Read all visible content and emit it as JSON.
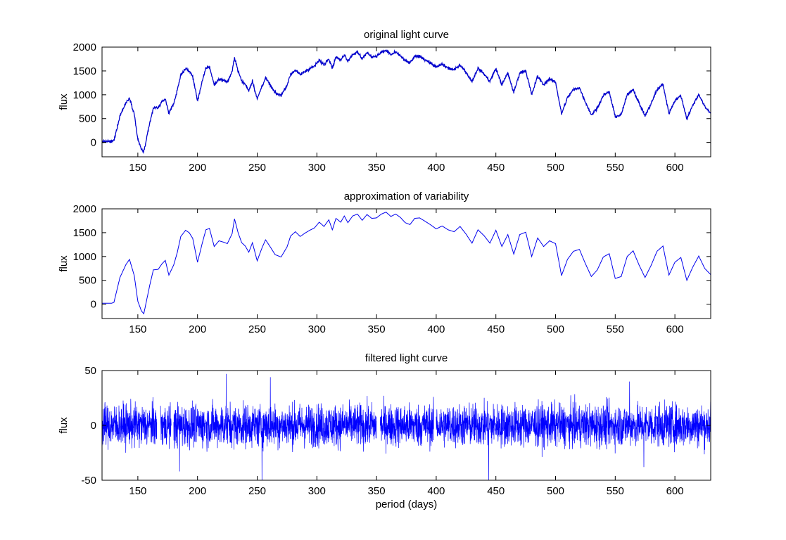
{
  "chart_data": [
    {
      "type": "line",
      "title": "original light curve",
      "ylabel": "flux",
      "xlabel": "",
      "xlim": [
        120,
        630
      ],
      "ylim": [
        -300,
        2000
      ],
      "xticks": [
        150,
        200,
        250,
        300,
        350,
        400,
        450,
        500,
        550,
        600
      ],
      "yticks": [
        0,
        500,
        1000,
        1500,
        2000
      ],
      "grid": false,
      "color": "#0000cc",
      "noise": 15,
      "series": [
        {
          "x": [
            120,
            128,
            130,
            135,
            140,
            143,
            147,
            150,
            153,
            155,
            160,
            163,
            167,
            170,
            173,
            176,
            180,
            183,
            186,
            190,
            193,
            196,
            200,
            204,
            207,
            210,
            214,
            218,
            222,
            225,
            229,
            231,
            234,
            237,
            240,
            243,
            246,
            250,
            254,
            257,
            261,
            265,
            270,
            275,
            278,
            282,
            286,
            290,
            294,
            298,
            302,
            306,
            310,
            313,
            316,
            320,
            323,
            326,
            330,
            334,
            338,
            342,
            346,
            350,
            354,
            358,
            362,
            366,
            370,
            374,
            378,
            382,
            386,
            390,
            395,
            400,
            405,
            410,
            415,
            420,
            425,
            430,
            435,
            440,
            445,
            450,
            455,
            460,
            465,
            470,
            475,
            480,
            485,
            490,
            495,
            500,
            505,
            510,
            515,
            520,
            525,
            530,
            535,
            540,
            545,
            550,
            555,
            560,
            565,
            570,
            575,
            580,
            585,
            590,
            595,
            600,
            605,
            610,
            615,
            620,
            625,
            630
          ],
          "y": [
            20,
            20,
            40,
            560,
            830,
            940,
            600,
            60,
            -140,
            -200,
            400,
            720,
            730,
            840,
            920,
            610,
            820,
            1080,
            1420,
            1550,
            1500,
            1380,
            880,
            1280,
            1560,
            1590,
            1210,
            1330,
            1300,
            1270,
            1480,
            1790,
            1500,
            1290,
            1220,
            1090,
            1290,
            910,
            1180,
            1350,
            1200,
            1040,
            990,
            1200,
            1430,
            1520,
            1420,
            1490,
            1550,
            1600,
            1720,
            1630,
            1770,
            1560,
            1800,
            1720,
            1850,
            1710,
            1850,
            1890,
            1760,
            1880,
            1800,
            1810,
            1890,
            1930,
            1840,
            1890,
            1820,
            1710,
            1670,
            1800,
            1810,
            1750,
            1670,
            1580,
            1640,
            1560,
            1520,
            1630,
            1470,
            1280,
            1560,
            1440,
            1280,
            1550,
            1210,
            1460,
            1050,
            1460,
            1510,
            1000,
            1390,
            1210,
            1330,
            1270,
            600,
            940,
            1110,
            1150,
            850,
            580,
            720,
            990,
            1060,
            540,
            580,
            1000,
            1120,
            820,
            560,
            810,
            1110,
            1220,
            610,
            880,
            980,
            500,
            780,
            1010,
            750,
            620
          ]
        }
      ]
    },
    {
      "type": "line",
      "title": "approximation of variability",
      "ylabel": "flux",
      "xlabel": "",
      "xlim": [
        120,
        630
      ],
      "ylim": [
        -300,
        2000
      ],
      "xticks": [
        150,
        200,
        250,
        300,
        350,
        400,
        450,
        500,
        550,
        600
      ],
      "yticks": [
        0,
        500,
        1000,
        1500,
        2000
      ],
      "grid": false,
      "color": "#0000ee",
      "noise": 0,
      "series": [
        {
          "x": [
            120,
            128,
            130,
            135,
            140,
            143,
            147,
            150,
            153,
            155,
            160,
            163,
            167,
            170,
            173,
            176,
            180,
            183,
            186,
            190,
            193,
            196,
            200,
            204,
            207,
            210,
            214,
            218,
            222,
            225,
            229,
            231,
            234,
            237,
            240,
            243,
            246,
            250,
            254,
            257,
            261,
            265,
            270,
            275,
            278,
            282,
            286,
            290,
            294,
            298,
            302,
            306,
            310,
            313,
            316,
            320,
            323,
            326,
            330,
            334,
            338,
            342,
            346,
            350,
            354,
            358,
            362,
            366,
            370,
            374,
            378,
            382,
            386,
            390,
            395,
            400,
            405,
            410,
            415,
            420,
            425,
            430,
            435,
            440,
            445,
            450,
            455,
            460,
            465,
            470,
            475,
            480,
            485,
            490,
            495,
            500,
            505,
            510,
            515,
            520,
            525,
            530,
            535,
            540,
            545,
            550,
            555,
            560,
            565,
            570,
            575,
            580,
            585,
            590,
            595,
            600,
            605,
            610,
            615,
            620,
            625,
            630
          ],
          "y": [
            20,
            20,
            40,
            560,
            830,
            940,
            600,
            60,
            -140,
            -200,
            400,
            720,
            730,
            840,
            920,
            610,
            820,
            1080,
            1420,
            1550,
            1500,
            1380,
            880,
            1280,
            1560,
            1590,
            1210,
            1330,
            1300,
            1270,
            1480,
            1790,
            1500,
            1290,
            1220,
            1090,
            1290,
            910,
            1180,
            1350,
            1200,
            1040,
            990,
            1200,
            1430,
            1520,
            1420,
            1490,
            1550,
            1600,
            1720,
            1630,
            1770,
            1560,
            1800,
            1720,
            1850,
            1710,
            1850,
            1890,
            1760,
            1880,
            1800,
            1810,
            1890,
            1930,
            1840,
            1890,
            1820,
            1710,
            1670,
            1800,
            1810,
            1750,
            1670,
            1580,
            1640,
            1560,
            1520,
            1630,
            1470,
            1280,
            1560,
            1440,
            1280,
            1550,
            1210,
            1460,
            1050,
            1460,
            1510,
            1000,
            1390,
            1210,
            1330,
            1270,
            600,
            940,
            1110,
            1150,
            850,
            580,
            720,
            990,
            1060,
            540,
            580,
            1000,
            1120,
            820,
            560,
            810,
            1110,
            1220,
            610,
            880,
            980,
            500,
            780,
            1010,
            750,
            620
          ]
        }
      ]
    },
    {
      "type": "line",
      "title": "filtered light curve",
      "ylabel": "flux",
      "xlabel": "period (days)",
      "xlim": [
        120,
        630
      ],
      "ylim": [
        -50,
        50
      ],
      "xticks": [
        150,
        200,
        250,
        300,
        350,
        400,
        450,
        500,
        550,
        600
      ],
      "yticks": [
        -50,
        0,
        50
      ],
      "grid": false,
      "color": "#0000ff",
      "residual": {
        "typical_range": [
          -25,
          25
        ],
        "extremes": [
          {
            "x": 168,
            "y": -27
          },
          {
            "x": 185,
            "y": -42
          },
          {
            "x": 224,
            "y": 47
          },
          {
            "x": 254,
            "y": -50
          },
          {
            "x": 261,
            "y": 44
          },
          {
            "x": 351,
            "y": 18
          },
          {
            "x": 444,
            "y": -50
          },
          {
            "x": 562,
            "y": 40
          },
          {
            "x": 574,
            "y": -38
          }
        ],
        "gaps": [
          [
            166,
            169
          ],
          [
            178,
            180
          ],
          [
            350,
            353
          ],
          [
            398,
            400
          ]
        ]
      }
    }
  ]
}
